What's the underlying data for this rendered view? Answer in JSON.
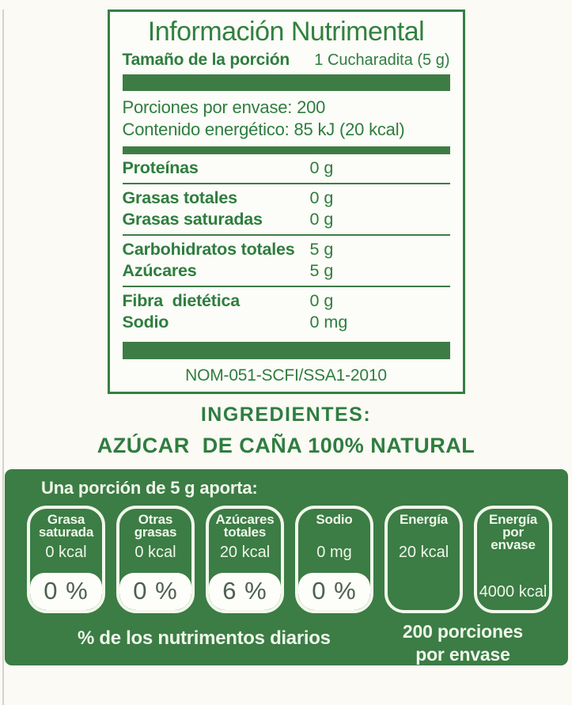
{
  "colors": {
    "green_text": "#2e7d3e",
    "green_bar": "#3e7c45",
    "panel_background": "#3c7c45",
    "panel_text": "#eff7e9",
    "percent_text": "#4e5f52",
    "page_background": "#fbfaf4"
  },
  "nutrition_table": {
    "title": "Información Nutrimental",
    "serving": {
      "label": "Tamaño de la porción",
      "value": "1 Cucharadita (5 g)"
    },
    "info_lines": [
      "Porciones por envase: 200",
      "Contenido energético: 85 kJ (20 kcal)"
    ],
    "groups": [
      {
        "rows": [
          {
            "label": "Proteínas",
            "value": "0 g"
          }
        ]
      },
      {
        "rows": [
          {
            "label": "Grasas totales",
            "value": "0 g"
          },
          {
            "label": "Grasas saturadas",
            "value": "0 g"
          }
        ]
      },
      {
        "rows": [
          {
            "label": "Carbohidratos totales",
            "value": "5 g"
          },
          {
            "label": "Azúcares",
            "value": "5 g"
          }
        ]
      },
      {
        "rows": [
          {
            "label": "Fibra  dietética",
            "value": "0 g"
          },
          {
            "label": "Sodio",
            "value": "0 mg"
          }
        ]
      }
    ],
    "footer": "NOM-051-SCFI/SSA1-2010"
  },
  "ingredients": {
    "heading": "INGREDIENTES:",
    "text": "AZÚCAR  DE CAÑA 100% NATURAL"
  },
  "gda_panel": {
    "intro": "Una porción de 5 g aporta:",
    "badges": [
      {
        "label_lines": [
          "Grasa",
          "saturada"
        ],
        "value": "0 kcal",
        "percent": "0 %"
      },
      {
        "label_lines": [
          "Otras",
          "grasas"
        ],
        "value": "0 kcal",
        "percent": "0 %"
      },
      {
        "label_lines": [
          "Azúcares",
          "totales"
        ],
        "value": "20 kcal",
        "percent": "6 %"
      },
      {
        "label_lines": [
          "Sodio"
        ],
        "value": "0 mg",
        "percent": "0 %"
      },
      {
        "label_lines": [
          "Energía"
        ],
        "value": "20 kcal",
        "percent": null
      },
      {
        "label_lines": [
          "Energía",
          "por",
          "envase"
        ],
        "value": "4000 kcal",
        "percent": null
      }
    ],
    "footer_left": "% de los nutrimentos diarios",
    "footer_right_lines": [
      "200 porciones",
      "por envase"
    ]
  }
}
